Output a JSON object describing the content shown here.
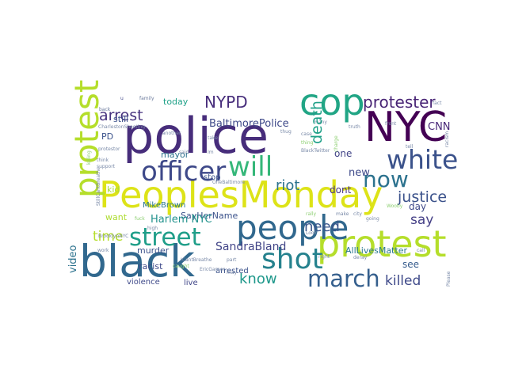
{
  "words": [
    {
      "text": "police",
      "color": "#472d7b"
    },
    {
      "text": "black",
      "color": "#31688e"
    },
    {
      "text": "PeoplesMonday",
      "color": "#dde318"
    },
    {
      "text": "NYC",
      "color": "#440154"
    },
    {
      "text": "cop",
      "color": "#21a585"
    },
    {
      "text": "protest",
      "color": "#b5de2b"
    },
    {
      "text": "people",
      "color": "#31688e"
    },
    {
      "text": "will",
      "color": "#35b779"
    },
    {
      "text": "officer",
      "color": "#3e4989"
    },
    {
      "text": "white",
      "color": "#3b528b"
    },
    {
      "text": "shot",
      "color": "#26828e"
    },
    {
      "text": "now",
      "color": "#2c728e"
    },
    {
      "text": "street",
      "color": "#1f9e89"
    },
    {
      "text": "march",
      "color": "#355f8d"
    },
    {
      "text": "NYPD",
      "color": "#472d7b"
    },
    {
      "text": "protester",
      "color": "#482475"
    },
    {
      "text": "arrest",
      "color": "#46327e"
    },
    {
      "text": "justice",
      "color": "#3b528b"
    },
    {
      "text": "riot",
      "color": "#2c728e"
    },
    {
      "text": "need",
      "color": "#39568c"
    },
    {
      "text": "know",
      "color": "#1f988b"
    },
    {
      "text": "killed",
      "color": "#3e4989"
    },
    {
      "text": "death",
      "color": "#1fa088"
    },
    {
      "text": "say",
      "color": "#433e85"
    },
    {
      "text": "time",
      "color": "#b5de2b"
    },
    {
      "text": "new",
      "color": "#3e4989"
    },
    {
      "text": "video",
      "color": "#2c728e"
    },
    {
      "text": "BaltimorePolice",
      "color": "#3e4989"
    },
    {
      "text": "SandraBland",
      "color": "#414487"
    },
    {
      "text": "AllLivesMatter",
      "color": "#2a788e"
    },
    {
      "text": "SayHerName",
      "color": "#3b528b"
    },
    {
      "text": "Harlem NYC",
      "color": "#21918c"
    },
    {
      "text": "CNN",
      "color": "#482878"
    },
    {
      "text": "PD",
      "color": "#3b528b"
    },
    {
      "text": "one",
      "color": "#414487"
    },
    {
      "text": "dont",
      "color": "#46337e"
    },
    {
      "text": "day",
      "color": "#3e4989"
    },
    {
      "text": "see",
      "color": "#365c8d"
    },
    {
      "text": "today",
      "color": "#1fa188"
    },
    {
      "text": "racist",
      "color": "#3e4989"
    },
    {
      "text": "murder",
      "color": "#3b528b"
    },
    {
      "text": "kid",
      "color": "#a8db34"
    },
    {
      "text": "want",
      "color": "#addc30"
    },
    {
      "text": "stop",
      "color": "#3b528b"
    },
    {
      "text": "mayor",
      "color": "#2c728e"
    },
    {
      "text": "MikeBrown",
      "color": "#2a788e"
    },
    {
      "text": "arrested",
      "color": "#3b528b"
    },
    {
      "text": "live",
      "color": "#404688"
    },
    {
      "text": "violence",
      "color": "#3e4989"
    },
    {
      "text": "still",
      "color": "#3b528b"
    },
    {
      "text": "u",
      "color": "#404688"
    },
    {
      "text": "family",
      "color": "#6b7a9c"
    },
    {
      "text": "back",
      "color": "#6b7a9c"
    },
    {
      "text": "CharlestonShooting",
      "color": "#7a8aa8"
    },
    {
      "text": "many",
      "color": "#7a8aa8"
    },
    {
      "text": "truth",
      "color": "#7a8aa8"
    },
    {
      "text": "fact",
      "color": "#7a8aa8"
    },
    {
      "text": "killing",
      "color": "#8ccf70"
    },
    {
      "text": "protestor",
      "color": "#7a8aa8"
    },
    {
      "text": "think",
      "color": "#7a8aa8"
    },
    {
      "text": "support",
      "color": "#7a8aa8"
    },
    {
      "text": "another",
      "color": "#7a8aa8"
    },
    {
      "text": "said",
      "color": "#7a8aa8"
    },
    {
      "text": "take",
      "color": "#7a8aa8"
    },
    {
      "text": "Im",
      "color": "#7a8aa8"
    },
    {
      "text": "thug",
      "color": "#7a8aa8"
    },
    {
      "text": "case",
      "color": "#7a8aa8"
    },
    {
      "text": "thing",
      "color": "#8ccf70"
    },
    {
      "text": "front",
      "color": "#7a8aa8"
    },
    {
      "text": "tell",
      "color": "#7a8aa8"
    },
    {
      "text": "racism",
      "color": "#7a8aa8"
    },
    {
      "text": "OneBaltimore",
      "color": "#7a8aa8"
    },
    {
      "text": "BlackTwitter",
      "color": "#7a8aa8"
    },
    {
      "text": "charge",
      "color": "#8ccf70"
    },
    {
      "text": "rally",
      "color": "#8ccf70"
    },
    {
      "text": "make",
      "color": "#7a8aa8"
    },
    {
      "text": "city",
      "color": "#7a8aa8"
    },
    {
      "text": "Wooby",
      "color": "#8ccf70"
    },
    {
      "text": "going",
      "color": "#7a8aa8"
    },
    {
      "text": "Look",
      "color": "#7a8aa8"
    },
    {
      "text": "ICantBreathe",
      "color": "#7a8aa8"
    },
    {
      "text": "EricGarner",
      "color": "#7a8aa8"
    },
    {
      "text": "may",
      "color": "#7a8aa8"
    },
    {
      "text": "part",
      "color": "#7a8aa8"
    },
    {
      "text": "caught",
      "color": "#8ccf70"
    },
    {
      "text": "right",
      "color": "#7a8aa8"
    },
    {
      "text": "deray",
      "color": "#7a8aa8"
    },
    {
      "text": "call",
      "color": "#7a8aa8"
    },
    {
      "text": "work",
      "color": "#7a8aa8"
    },
    {
      "text": "Please",
      "color": "#7a8aa8"
    },
    {
      "text": "StillCantBreathe",
      "color": "#7a8aa8"
    },
    {
      "text": "BrooklynNYC",
      "color": "#7a8aa8"
    },
    {
      "text": "fuck",
      "color": "#8ccf70"
    },
    {
      "text": "high",
      "color": "#7a8aa8"
    },
    {
      "text": "sign",
      "color": "#7a8aa8"
    }
  ]
}
